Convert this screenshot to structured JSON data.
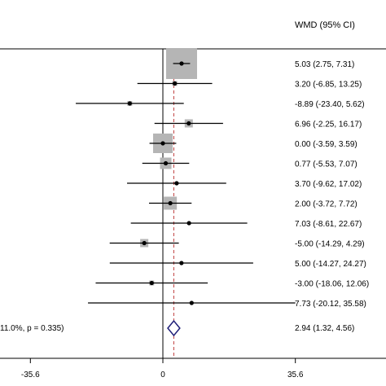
{
  "chart_data": {
    "type": "forest",
    "header": "WMD (95% CI)",
    "xticks": [
      -35.6,
      0,
      35.6
    ],
    "xtick_labels": [
      "-35.6",
      "0",
      "35.6"
    ],
    "null_value": 0,
    "pooled_reference": 2.94,
    "studies": [
      {
        "est": 5.03,
        "lo": 2.75,
        "hi": 7.31,
        "label": "5.03 (2.75, 7.31)"
      },
      {
        "est": 3.2,
        "lo": -6.85,
        "hi": 13.25,
        "label": "3.20 (-6.85, 13.25)"
      },
      {
        "est": -8.89,
        "lo": -23.4,
        "hi": 5.62,
        "label": "-8.89 (-23.40, 5.62)"
      },
      {
        "est": 6.96,
        "lo": -2.25,
        "hi": 16.17,
        "label": "6.96 (-2.25, 16.17)"
      },
      {
        "est": 0.0,
        "lo": -3.59,
        "hi": 3.59,
        "label": "0.00 (-3.59, 3.59)"
      },
      {
        "est": 0.77,
        "lo": -5.53,
        "hi": 7.07,
        "label": "0.77 (-5.53, 7.07)"
      },
      {
        "est": 3.7,
        "lo": -9.62,
        "hi": 17.02,
        "label": "3.70 (-9.62, 17.02)"
      },
      {
        "est": 2.0,
        "lo": -3.72,
        "hi": 7.72,
        "label": "2.00 (-3.72, 7.72)"
      },
      {
        "est": 7.03,
        "lo": -8.61,
        "hi": 22.67,
        "label": "7.03 (-8.61, 22.67)"
      },
      {
        "est": -5.0,
        "lo": -14.29,
        "hi": 4.29,
        "label": "-5.00 (-14.29, 4.29)"
      },
      {
        "est": 5.0,
        "lo": -14.27,
        "hi": 24.27,
        "label": "5.00 (-14.27, 24.27)"
      },
      {
        "est": -3.0,
        "lo": -18.06,
        "hi": 12.06,
        "label": "-3.00 (-18.06, 12.06)"
      },
      {
        "est": 7.73,
        "lo": -20.12,
        "hi": 35.58,
        "label": "7.73 (-20.12, 35.58)"
      }
    ],
    "overall": {
      "est": 2.94,
      "lo": 1.32,
      "hi": 4.56,
      "label": "2.94 (1.32, 4.56)",
      "heterogeneity_text": "11.0%, p = 0.335)"
    },
    "colors": {
      "box": "#b5b5b5",
      "diamond": "#1e1e78",
      "reference_line": "#c04040",
      "ci_line": "#000000"
    }
  }
}
